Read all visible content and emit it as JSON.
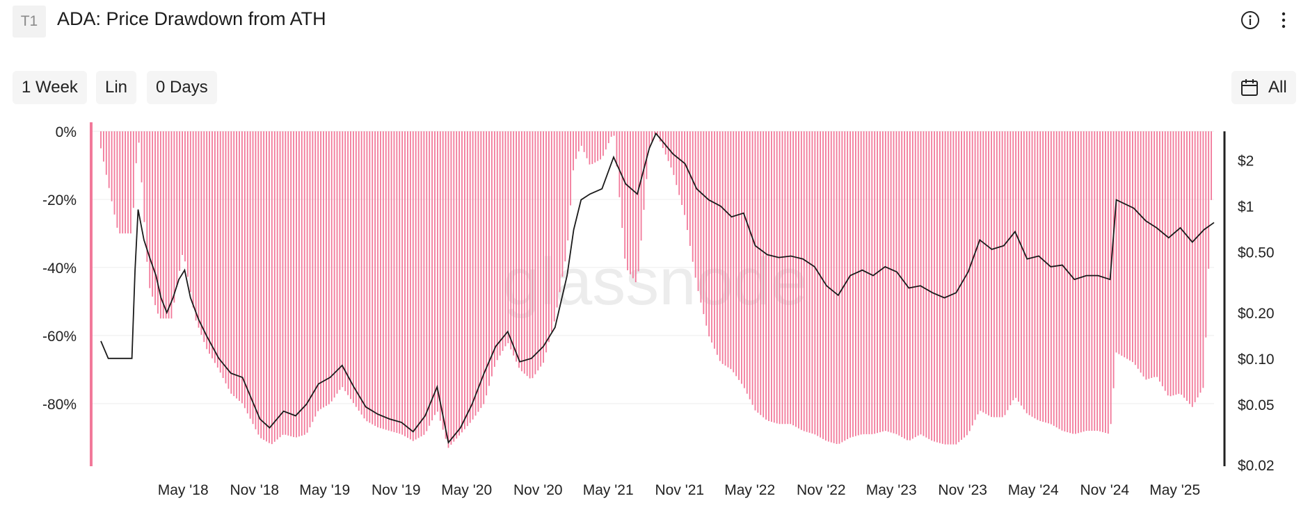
{
  "header": {
    "badge": "T1",
    "title": "ADA: Price Drawdown from ATH",
    "info_icon": "info-icon",
    "more_icon": "more-vertical-icon"
  },
  "controls": {
    "resolution": "1 Week",
    "scale": "Lin",
    "smoothing": "0 Days",
    "range": "All",
    "calendar_icon": "calendar-icon"
  },
  "watermark": "glassnode",
  "colors": {
    "drawdown": "#f2799a",
    "price": "#1a1a1a",
    "grid": "#ececec",
    "axis": "#222222"
  },
  "chart_data": {
    "type": "bar",
    "title": "ADA: Price Drawdown from ATH",
    "x_ticks": [
      "May '18",
      "Nov '18",
      "May '19",
      "Nov '19",
      "May '20",
      "Nov '20",
      "May '21",
      "Nov '21",
      "May '22",
      "Nov '22",
      "May '23",
      "Nov '23",
      "May '24",
      "Nov '24",
      "May '25"
    ],
    "y_left": {
      "ticks": [
        "0%",
        "-20%",
        "-40%",
        "-60%",
        "-80%"
      ],
      "range": [
        -98,
        0
      ]
    },
    "y_right": {
      "ticks": [
        "$2",
        "$1",
        "$0.50",
        "$0.20",
        "$0.10",
        "$0.05",
        "$0.02"
      ],
      "scale": "log",
      "range": [
        0.02,
        3.1
      ]
    },
    "x_range": [
      "2017-10-01",
      "2025-08-10"
    ],
    "grid": true,
    "series": [
      {
        "type": "bar",
        "axis": "left",
        "points": [
          [
            "2017-10-01",
            -5
          ],
          [
            "2017-11-15",
            -30
          ],
          [
            "2017-12-20",
            -30
          ],
          [
            "2018-01-05",
            0
          ],
          [
            "2018-02-01",
            -45
          ],
          [
            "2018-03-01",
            -55
          ],
          [
            "2018-04-01",
            -55
          ],
          [
            "2018-05-01",
            -35
          ],
          [
            "2018-06-01",
            -55
          ],
          [
            "2018-07-01",
            -64
          ],
          [
            "2018-08-01",
            -70
          ],
          [
            "2018-09-01",
            -77
          ],
          [
            "2018-10-01",
            -80
          ],
          [
            "2018-11-15",
            -90
          ],
          [
            "2018-12-15",
            -92
          ],
          [
            "2019-01-15",
            -89
          ],
          [
            "2019-02-15",
            -90
          ],
          [
            "2019-03-15",
            -89
          ],
          [
            "2019-04-15",
            -82
          ],
          [
            "2019-05-15",
            -80
          ],
          [
            "2019-06-15",
            -75
          ],
          [
            "2019-07-15",
            -80
          ],
          [
            "2019-08-15",
            -85
          ],
          [
            "2019-09-15",
            -87
          ],
          [
            "2019-10-15",
            -88
          ],
          [
            "2019-11-15",
            -89
          ],
          [
            "2019-12-15",
            -91
          ],
          [
            "2020-01-15",
            -89
          ],
          [
            "2020-02-15",
            -82
          ],
          [
            "2020-03-15",
            -93
          ],
          [
            "2020-04-15",
            -89
          ],
          [
            "2020-05-15",
            -85
          ],
          [
            "2020-06-15",
            -80
          ],
          [
            "2020-07-15",
            -68
          ],
          [
            "2020-08-15",
            -62
          ],
          [
            "2020-09-15",
            -70
          ],
          [
            "2020-10-15",
            -73
          ],
          [
            "2020-11-15",
            -68
          ],
          [
            "2020-12-15",
            -55
          ],
          [
            "2021-01-15",
            -35
          ],
          [
            "2021-02-01",
            -10
          ],
          [
            "2021-02-20",
            -4
          ],
          [
            "2021-03-15",
            -10
          ],
          [
            "2021-04-15",
            -8
          ],
          [
            "2021-05-15",
            0
          ],
          [
            "2021-06-15",
            -40
          ],
          [
            "2021-07-15",
            -45
          ],
          [
            "2021-08-15",
            -5
          ],
          [
            "2021-09-01",
            0
          ],
          [
            "2021-10-15",
            -12
          ],
          [
            "2021-11-15",
            -25
          ],
          [
            "2021-12-15",
            -45
          ],
          [
            "2022-01-15",
            -60
          ],
          [
            "2022-02-15",
            -68
          ],
          [
            "2022-03-15",
            -70
          ],
          [
            "2022-04-15",
            -75
          ],
          [
            "2022-05-15",
            -82
          ],
          [
            "2022-06-15",
            -85
          ],
          [
            "2022-07-15",
            -86
          ],
          [
            "2022-08-15",
            -86
          ],
          [
            "2022-09-15",
            -88
          ],
          [
            "2022-10-15",
            -89
          ],
          [
            "2022-11-15",
            -91
          ],
          [
            "2022-12-15",
            -92
          ],
          [
            "2023-01-15",
            -90
          ],
          [
            "2023-02-15",
            -89
          ],
          [
            "2023-03-15",
            -89
          ],
          [
            "2023-04-15",
            -88
          ],
          [
            "2023-05-15",
            -89
          ],
          [
            "2023-06-15",
            -91
          ],
          [
            "2023-07-15",
            -89
          ],
          [
            "2023-08-15",
            -91
          ],
          [
            "2023-09-15",
            -92
          ],
          [
            "2023-10-15",
            -92
          ],
          [
            "2023-11-15",
            -89
          ],
          [
            "2023-12-15",
            -82
          ],
          [
            "2024-01-15",
            -84
          ],
          [
            "2024-02-15",
            -84
          ],
          [
            "2024-03-15",
            -78
          ],
          [
            "2024-04-15",
            -83
          ],
          [
            "2024-05-15",
            -85
          ],
          [
            "2024-06-15",
            -86
          ],
          [
            "2024-07-15",
            -88
          ],
          [
            "2024-08-15",
            -89
          ],
          [
            "2024-09-15",
            -88
          ],
          [
            "2024-10-15",
            -88
          ],
          [
            "2024-11-15",
            -89
          ],
          [
            "2024-12-01",
            -65
          ],
          [
            "2025-01-15",
            -68
          ],
          [
            "2025-02-15",
            -73
          ],
          [
            "2025-03-15",
            -72
          ],
          [
            "2025-04-15",
            -78
          ],
          [
            "2025-05-15",
            -77
          ],
          [
            "2025-06-15",
            -81
          ],
          [
            "2025-07-15",
            -75
          ],
          [
            "2025-08-10",
            0
          ]
        ]
      },
      {
        "type": "line",
        "axis": "right",
        "points": [
          [
            "2017-10-01",
            0.13
          ],
          [
            "2017-10-20",
            0.1
          ],
          [
            "2017-12-20",
            0.1
          ],
          [
            "2017-12-28",
            0.38
          ],
          [
            "2018-01-05",
            0.95
          ],
          [
            "2018-01-20",
            0.6
          ],
          [
            "2018-02-05",
            0.45
          ],
          [
            "2018-02-20",
            0.35
          ],
          [
            "2018-03-05",
            0.25
          ],
          [
            "2018-03-20",
            0.2
          ],
          [
            "2018-04-05",
            0.25
          ],
          [
            "2018-04-20",
            0.33
          ],
          [
            "2018-05-05",
            0.38
          ],
          [
            "2018-05-20",
            0.25
          ],
          [
            "2018-06-10",
            0.18
          ],
          [
            "2018-07-01",
            0.14
          ],
          [
            "2018-08-01",
            0.1
          ],
          [
            "2018-09-01",
            0.08
          ],
          [
            "2018-10-01",
            0.075
          ],
          [
            "2018-11-15",
            0.04
          ],
          [
            "2018-12-10",
            0.035
          ],
          [
            "2019-01-15",
            0.045
          ],
          [
            "2019-02-15",
            0.042
          ],
          [
            "2019-03-15",
            0.05
          ],
          [
            "2019-04-15",
            0.068
          ],
          [
            "2019-05-15",
            0.075
          ],
          [
            "2019-06-15",
            0.09
          ],
          [
            "2019-07-15",
            0.065
          ],
          [
            "2019-08-15",
            0.048
          ],
          [
            "2019-09-15",
            0.043
          ],
          [
            "2019-10-15",
            0.04
          ],
          [
            "2019-11-15",
            0.038
          ],
          [
            "2019-12-15",
            0.033
          ],
          [
            "2020-01-15",
            0.042
          ],
          [
            "2020-02-15",
            0.065
          ],
          [
            "2020-03-15",
            0.028
          ],
          [
            "2020-04-15",
            0.035
          ],
          [
            "2020-05-15",
            0.05
          ],
          [
            "2020-06-15",
            0.08
          ],
          [
            "2020-07-15",
            0.12
          ],
          [
            "2020-08-15",
            0.15
          ],
          [
            "2020-09-15",
            0.095
          ],
          [
            "2020-10-15",
            0.1
          ],
          [
            "2020-11-15",
            0.12
          ],
          [
            "2020-12-15",
            0.16
          ],
          [
            "2021-01-15",
            0.35
          ],
          [
            "2021-02-01",
            0.7
          ],
          [
            "2021-02-20",
            1.1
          ],
          [
            "2021-03-15",
            1.2
          ],
          [
            "2021-04-15",
            1.3
          ],
          [
            "2021-05-15",
            2.1
          ],
          [
            "2021-06-15",
            1.4
          ],
          [
            "2021-07-15",
            1.2
          ],
          [
            "2021-08-15",
            2.4
          ],
          [
            "2021-09-01",
            3.0
          ],
          [
            "2021-10-15",
            2.2
          ],
          [
            "2021-11-15",
            1.9
          ],
          [
            "2021-12-15",
            1.3
          ],
          [
            "2022-01-15",
            1.1
          ],
          [
            "2022-02-15",
            1.0
          ],
          [
            "2022-03-15",
            0.85
          ],
          [
            "2022-04-15",
            0.9
          ],
          [
            "2022-05-15",
            0.55
          ],
          [
            "2022-06-15",
            0.48
          ],
          [
            "2022-07-15",
            0.46
          ],
          [
            "2022-08-15",
            0.47
          ],
          [
            "2022-09-15",
            0.45
          ],
          [
            "2022-10-15",
            0.4
          ],
          [
            "2022-11-15",
            0.3
          ],
          [
            "2022-12-15",
            0.26
          ],
          [
            "2023-01-15",
            0.35
          ],
          [
            "2023-02-15",
            0.38
          ],
          [
            "2023-03-15",
            0.35
          ],
          [
            "2023-04-15",
            0.4
          ],
          [
            "2023-05-15",
            0.37
          ],
          [
            "2023-06-15",
            0.29
          ],
          [
            "2023-07-15",
            0.3
          ],
          [
            "2023-08-15",
            0.27
          ],
          [
            "2023-09-15",
            0.25
          ],
          [
            "2023-10-15",
            0.27
          ],
          [
            "2023-11-15",
            0.37
          ],
          [
            "2023-12-15",
            0.6
          ],
          [
            "2024-01-15",
            0.52
          ],
          [
            "2024-02-15",
            0.55
          ],
          [
            "2024-03-15",
            0.68
          ],
          [
            "2024-04-15",
            0.45
          ],
          [
            "2024-05-15",
            0.47
          ],
          [
            "2024-06-15",
            0.4
          ],
          [
            "2024-07-15",
            0.41
          ],
          [
            "2024-08-15",
            0.33
          ],
          [
            "2024-09-15",
            0.35
          ],
          [
            "2024-10-15",
            0.35
          ],
          [
            "2024-11-15",
            0.33
          ],
          [
            "2024-12-01",
            1.1
          ],
          [
            "2025-01-15",
            0.97
          ],
          [
            "2025-02-15",
            0.8
          ],
          [
            "2025-03-15",
            0.72
          ],
          [
            "2025-04-15",
            0.62
          ],
          [
            "2025-05-15",
            0.72
          ],
          [
            "2025-06-15",
            0.58
          ],
          [
            "2025-07-15",
            0.7
          ],
          [
            "2025-08-10",
            0.78
          ]
        ]
      }
    ]
  }
}
